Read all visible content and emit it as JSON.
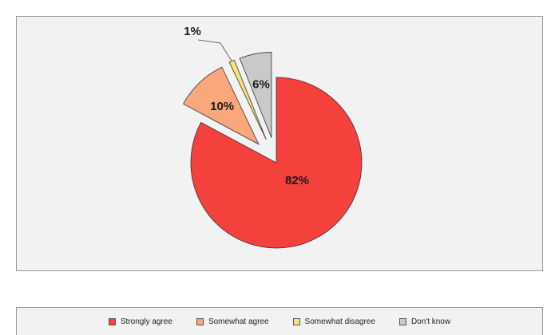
{
  "chart_data": {
    "type": "pie",
    "categories": [
      "Strongly agree",
      "Somewhat agree",
      "Somewhat disagree",
      "Don't know"
    ],
    "values": [
      82,
      10,
      1,
      6
    ],
    "labels": [
      "82%",
      "10%",
      "1%",
      "6%"
    ],
    "exploded": [
      false,
      true,
      true,
      true
    ],
    "colors": [
      "#f5413b",
      "#fba77c",
      "#fce07a",
      "#c9c9c9"
    ],
    "legend_position": "bottom"
  }
}
